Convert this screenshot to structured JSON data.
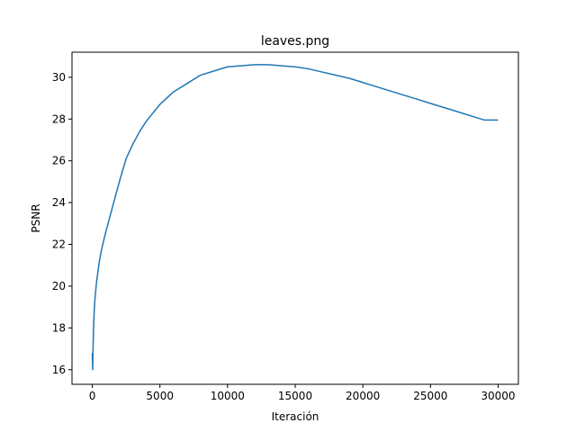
{
  "chart_data": {
    "type": "line",
    "title": "leaves.png",
    "xlabel": "Iteración",
    "ylabel": "PSNR",
    "xlim": [
      -1500,
      31500
    ],
    "ylim": [
      15.3,
      31.2
    ],
    "xticks": [
      0,
      5000,
      10000,
      15000,
      20000,
      25000,
      30000
    ],
    "yticks": [
      16,
      18,
      20,
      22,
      24,
      26,
      28,
      30
    ],
    "grid": false,
    "legend": "none",
    "line_color": "#1f77b4",
    "series": [
      {
        "x": [
          0,
          30,
          60,
          100,
          150,
          200,
          300,
          400,
          500,
          700,
          1000,
          1500,
          2000,
          2500,
          3000,
          3500,
          4000,
          4500,
          5000,
          6000,
          7000,
          8000,
          9000,
          10000,
          11000,
          12000,
          13000,
          14000,
          15000,
          16000,
          17000,
          18000,
          19000,
          20000,
          21000,
          22000,
          23000,
          24000,
          25000,
          26000,
          27000,
          28000,
          29000,
          30000
        ],
        "y": [
          16.8,
          16.0,
          17.2,
          18.2,
          18.9,
          19.4,
          20.1,
          20.6,
          21.1,
          21.8,
          22.6,
          23.8,
          25.0,
          26.1,
          26.8,
          27.4,
          27.9,
          28.3,
          28.7,
          29.3,
          29.7,
          30.1,
          30.3,
          30.5,
          30.55,
          30.6,
          30.6,
          30.55,
          30.5,
          30.4,
          30.25,
          30.1,
          29.95,
          29.75,
          29.55,
          29.35,
          29.15,
          28.95,
          28.75,
          28.55,
          28.35,
          28.15,
          27.95,
          27.95
        ]
      }
    ]
  }
}
